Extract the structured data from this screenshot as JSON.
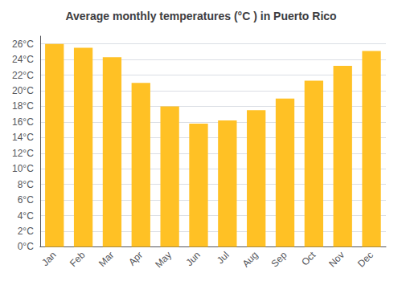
{
  "chart_data": {
    "type": "bar",
    "title": "Average monthly temperatures (°C ) in Puerto Rico",
    "categories": [
      "Jan",
      "Feb",
      "Mar",
      "Apr",
      "May",
      "Jun",
      "Jul",
      "Aug",
      "Sep",
      "Oct",
      "Nov",
      "Dec"
    ],
    "values": [
      26.0,
      25.5,
      24.3,
      21.0,
      18.0,
      15.8,
      16.2,
      17.5,
      19.0,
      21.3,
      23.2,
      25.1
    ],
    "color": "#FFC125",
    "ylim": [
      0,
      27
    ],
    "yticks": [
      {
        "value": 0,
        "label": "0°C"
      },
      {
        "value": 2,
        "label": "2°C"
      },
      {
        "value": 4,
        "label": "4°C"
      },
      {
        "value": 6,
        "label": "6°C"
      },
      {
        "value": 8,
        "label": "8°C"
      },
      {
        "value": 10,
        "label": "10°C"
      },
      {
        "value": 12,
        "label": "12°C"
      },
      {
        "value": 14,
        "label": "14°C"
      },
      {
        "value": 16,
        "label": "16°C"
      },
      {
        "value": 18,
        "label": "18°C"
      },
      {
        "value": 20,
        "label": "20°C"
      },
      {
        "value": 22,
        "label": "22°C"
      },
      {
        "value": 24,
        "label": "24°C"
      },
      {
        "value": 26,
        "label": "26°C"
      }
    ],
    "grid": true
  }
}
